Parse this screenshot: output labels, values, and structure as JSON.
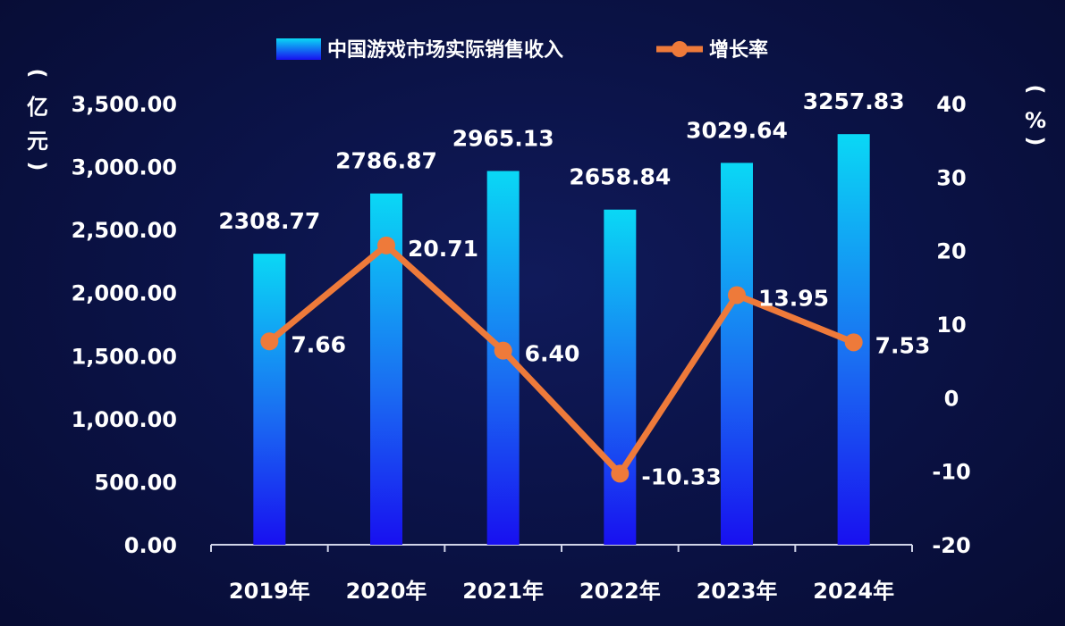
{
  "chart_data": {
    "type": "bar",
    "categories": [
      "2019年",
      "2020年",
      "2021年",
      "2022年",
      "2023年",
      "2024年"
    ],
    "series": [
      {
        "name": "中国游戏市场实际销售收入",
        "type": "bar",
        "axis": "left",
        "values": [
          2308.77,
          2786.87,
          2965.13,
          2658.84,
          3029.64,
          3257.83
        ],
        "labels": [
          "2308.77",
          "2786.87",
          "2965.13",
          "2658.84",
          "3029.64",
          "3257.83"
        ]
      },
      {
        "name": "增长率",
        "type": "line",
        "axis": "right",
        "values": [
          7.66,
          20.71,
          6.4,
          -10.33,
          13.95,
          7.53
        ],
        "labels": [
          "7.66",
          "20.71",
          "6.40",
          "-10.33",
          "13.95",
          "7.53"
        ]
      }
    ],
    "y_left": {
      "unit": [
        "(",
        "亿",
        "元",
        ")"
      ],
      "ylim": [
        0,
        3500
      ],
      "ticks": [
        "0.00",
        "500.00",
        "1,000.00",
        "1,500.00",
        "2,000.00",
        "2,500.00",
        "3,000.00",
        "3,500.00"
      ]
    },
    "y_right": {
      "unit": [
        "(",
        "%",
        ")"
      ],
      "ylim": [
        -20,
        40
      ],
      "ticks": [
        "-20",
        "-10",
        "0",
        "10",
        "20",
        "30",
        "40"
      ]
    },
    "grid": false,
    "legend_position": "top-center",
    "colors": {
      "bar_top": "#0ad8f5",
      "bar_bottom": "#1810f0",
      "line": "#ee7a3a",
      "text": "#ffffff",
      "axis": "#d0d4e8"
    }
  }
}
